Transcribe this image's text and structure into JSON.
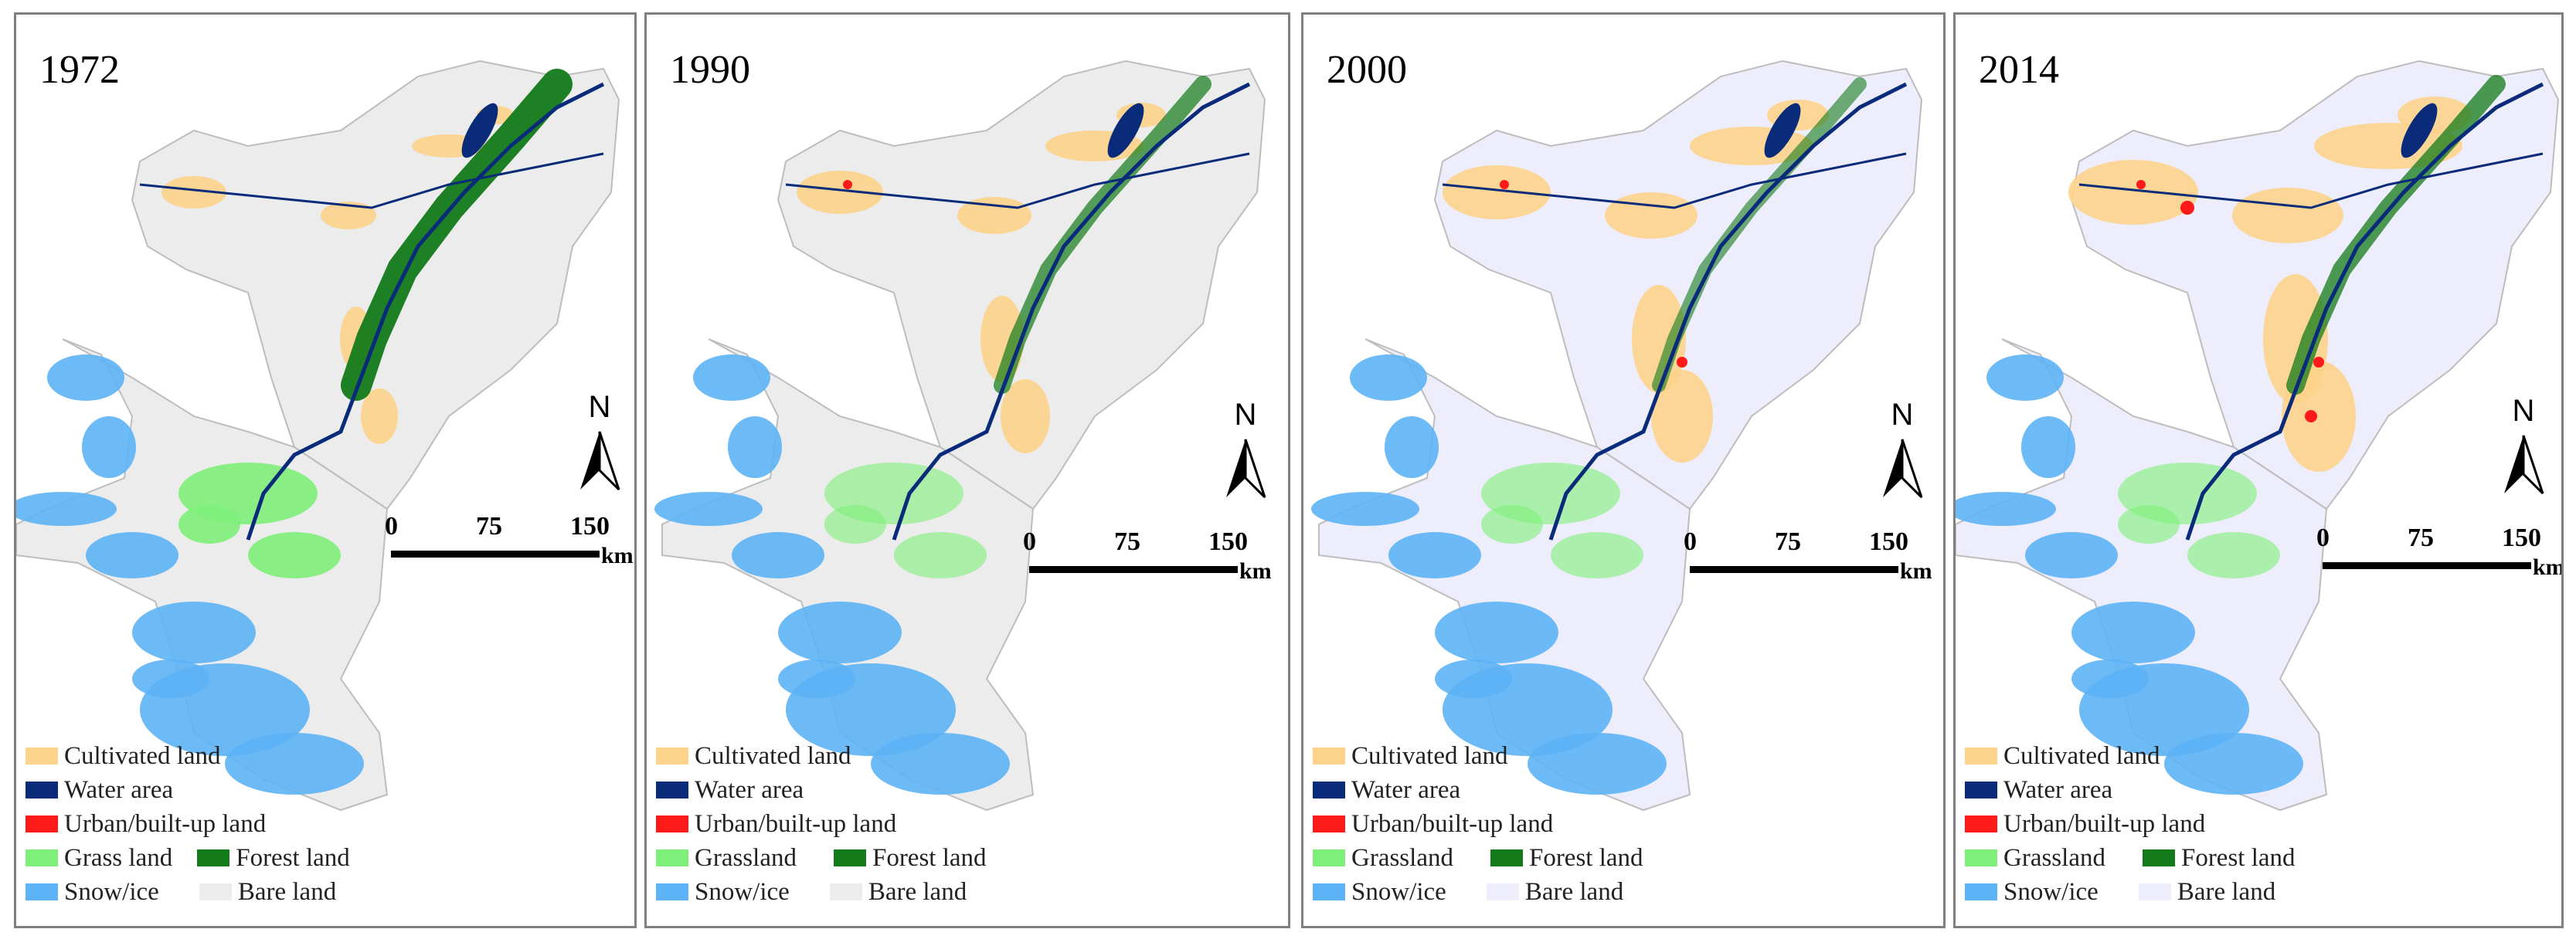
{
  "panels": [
    {
      "year": "1972",
      "legend": {
        "cultivated": "Cultivated land",
        "water": "Water area",
        "urban": "Urban/built-up land",
        "grass": "Grass land",
        "forest": "Forest land",
        "snow": "Snow/ice",
        "bare": "Bare land"
      }
    },
    {
      "year": "1990",
      "legend": {
        "cultivated": "Cultivated land",
        "water": "Water area",
        "urban": "Urban/built-up land",
        "grass": "Grassland",
        "forest": "Forest land",
        "snow": "Snow/ice",
        "bare": "Bare land"
      }
    },
    {
      "year": "2000",
      "legend": {
        "cultivated": "Cultivated land",
        "water": "Water area",
        "urban": "Urban/built-up land",
        "grass": "Grassland",
        "forest": "Forest land",
        "snow": "Snow/ice",
        "bare": "Bare land"
      }
    },
    {
      "year": "2014",
      "legend": {
        "cultivated": "Cultivated land",
        "water": "Water area",
        "urban": "Urban/built-up land",
        "grass": "Grassland",
        "forest": "Forest land",
        "snow": "Snow/ice",
        "bare": "Bare land"
      }
    }
  ],
  "north_label": "N",
  "scale": {
    "ticks": [
      "0",
      "75",
      "150"
    ],
    "unit": "km"
  },
  "colors": {
    "cultivated": "#fdd38b",
    "water": "#0a2a7a",
    "urban": "#ff1a1a",
    "grass": "#7ef07a",
    "forest": "#137a1a",
    "snow": "#5cb3f5",
    "bare_1972_1990": "#ececec",
    "bare_2000_2014": "#ededfb"
  }
}
